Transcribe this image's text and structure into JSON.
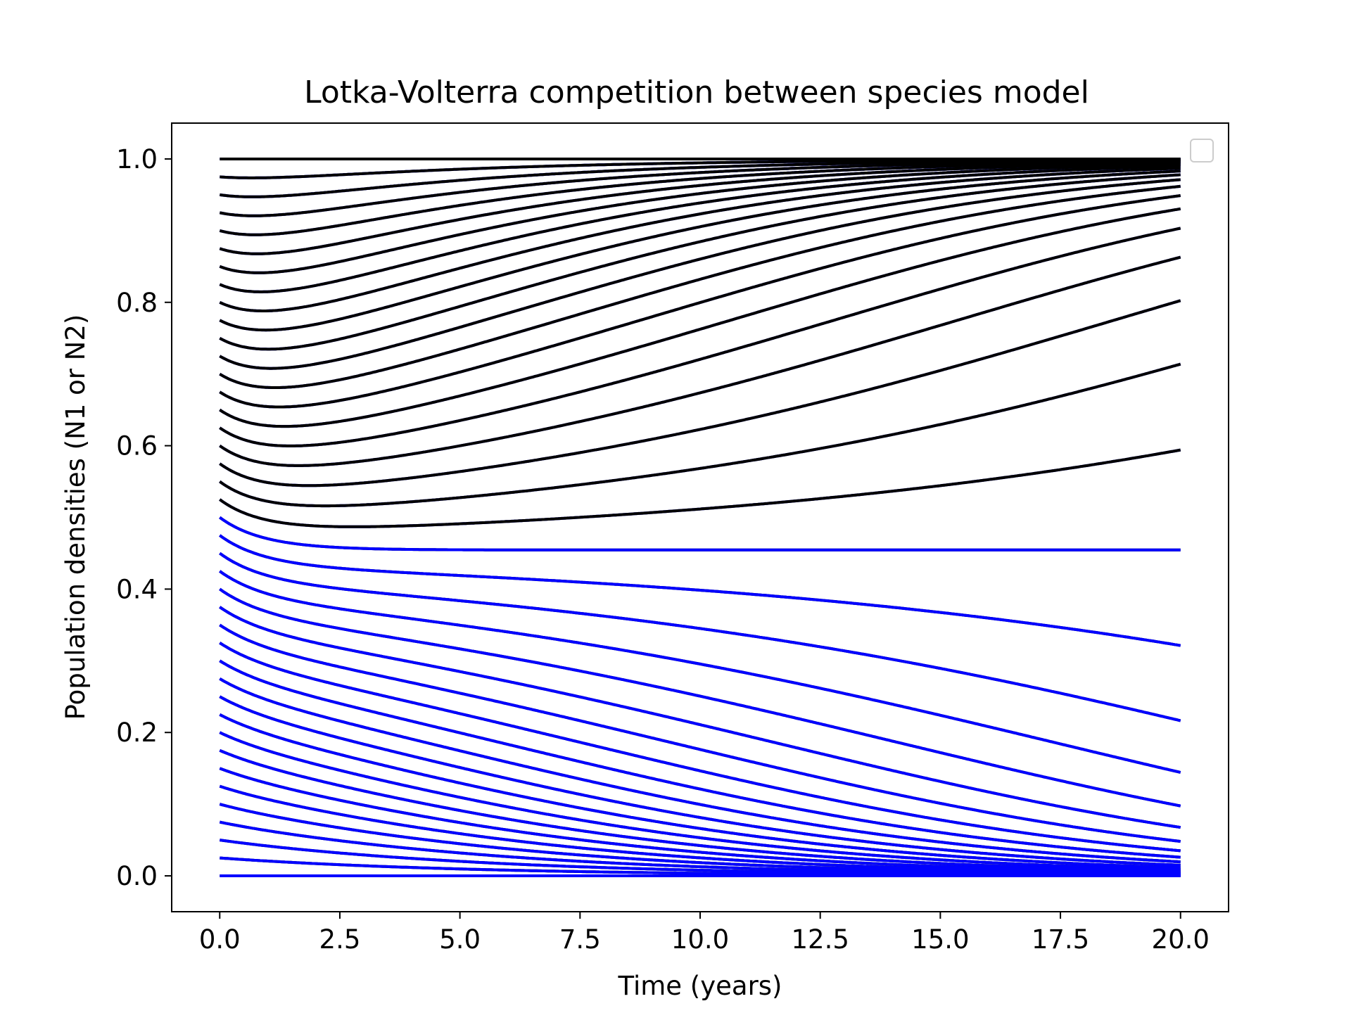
{
  "chart_data": {
    "type": "line",
    "title": "Lotka-Volterra competition between species model",
    "xlabel": "Time (years)",
    "ylabel": "Population densities (N1 or N2)",
    "xlim": [
      -1.0,
      21.0
    ],
    "ylim": [
      -0.05,
      1.05
    ],
    "x_ticks": [
      0.0,
      2.5,
      5.0,
      7.5,
      10.0,
      12.5,
      15.0,
      17.5,
      20.0
    ],
    "x_tick_labels": [
      "0.0",
      "2.5",
      "5.0",
      "7.5",
      "10.0",
      "12.5",
      "15.0",
      "17.5",
      "20.0"
    ],
    "y_ticks": [
      0.0,
      0.2,
      0.4,
      0.6,
      0.8,
      1.0
    ],
    "y_tick_labels": [
      "0.0",
      "0.2",
      "0.4",
      "0.6",
      "0.8",
      "1.0"
    ],
    "grid": false,
    "legend": "top-right",
    "legend_entries": [],
    "time_range": [
      0,
      20
    ],
    "initial_conditions": [
      0.0,
      0.025,
      0.05,
      0.075,
      0.1,
      0.125,
      0.15,
      0.175,
      0.2,
      0.225,
      0.25,
      0.275,
      0.3,
      0.325,
      0.35,
      0.375,
      0.4,
      0.425,
      0.45,
      0.475,
      0.5,
      0.525,
      0.55,
      0.575,
      0.6,
      0.625,
      0.65,
      0.675,
      0.7,
      0.725,
      0.75,
      0.775,
      0.8,
      0.825,
      0.85,
      0.875,
      0.9,
      0.925,
      0.95,
      0.975,
      1.0
    ],
    "series": [
      {
        "color": "#000000",
        "description": "N1 trajectories, one per initial condition; each recovers to 1.0 (or stays 0.0 when starting at 0)"
      },
      {
        "color": "#0000ff",
        "description": "N2 trajectories, one per initial condition (mirror of N1); each decays to 0.0"
      }
    ],
    "colors": {
      "n1": "#000000",
      "n2": "#0000ff"
    }
  }
}
